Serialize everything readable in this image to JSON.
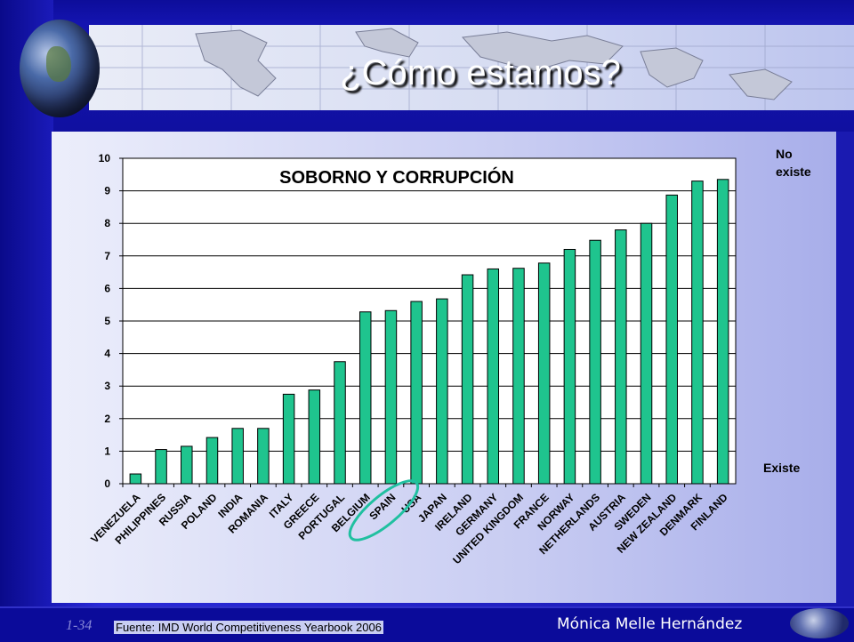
{
  "slide": {
    "title": "¿Cómo estamos?",
    "label_top_line1": "No",
    "label_top_line2": "existe",
    "label_bottom": "Existe",
    "slide_number": "1-34",
    "source": "Fuente: IMD World Competitiveness Yearbook 2006",
    "author": "Mónica Melle Hernández"
  },
  "chart_data": {
    "type": "bar",
    "title": "SOBORNO Y CORRUPCIÓN",
    "xlabel": "",
    "ylabel": "",
    "ylim": [
      0,
      10
    ],
    "yticks": [
      0,
      1,
      2,
      3,
      4,
      5,
      6,
      7,
      8,
      9,
      10
    ],
    "grid": true,
    "bar_color": "#1fc48e",
    "highlight": "SPAIN",
    "categories": [
      "VENEZUELA",
      "PHILIPPINES",
      "RUSSIA",
      "POLAND",
      "INDIA",
      "ROMANIA",
      "ITALY",
      "GREECE",
      "PORTUGAL",
      "BELGIUM",
      "SPAIN",
      "USA",
      "JAPAN",
      "IRELAND",
      "GERMANY",
      "UNITED KINGDOM",
      "FRANCE",
      "NORWAY",
      "NETHERLANDS",
      "AUSTRIA",
      "SWEDEN",
      "NEW ZEALAND",
      "DENMARK",
      "FINLAND"
    ],
    "values": [
      0.3,
      1.05,
      1.15,
      1.42,
      1.7,
      1.7,
      2.75,
      2.88,
      3.75,
      5.28,
      5.32,
      5.6,
      5.68,
      6.42,
      6.6,
      6.62,
      6.78,
      7.2,
      7.48,
      7.8,
      8.0,
      8.87,
      9.3,
      9.35
    ]
  }
}
